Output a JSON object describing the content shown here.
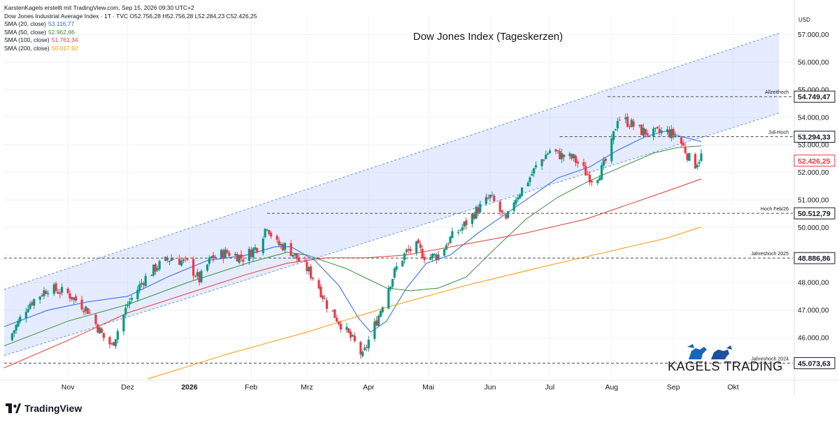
{
  "header": {
    "attribution": "KarstenKagels erstellt mit TradingView.com, Sep 15, 2026 09:30 UTC+2",
    "symbol": "Dow Jones Industrial Average Index · 1T · TVC",
    "ohlc": "O52.756,28 H52.756,28 L52.284,23 C52.426,25"
  },
  "legend": [
    {
      "label": "SMA (20, close)",
      "value": "53.116,77",
      "color": "#2962ff"
    },
    {
      "label": "SMA (50, close)",
      "value": "52.962,86",
      "color": "#388e3c"
    },
    {
      "label": "SMA (100, close)",
      "value": "51.761,34",
      "color": "#e53935"
    },
    {
      "label": "SMA (200, close)",
      "value": "50.017,92",
      "color": "#ff9800"
    }
  ],
  "branding": {
    "logo_text": "TradingView",
    "watermark": "KAGELS TRADING"
  },
  "chart_data": {
    "type": "candlestick",
    "title": "Dow Jones Index (Tageskerzen)",
    "currency": "USD",
    "ylim": [
      44500,
      57700
    ],
    "y_ticks": [
      "57.000,00",
      "56.000,00",
      "55.000,00",
      "54.000,00",
      "53.000,00",
      "52.000,00",
      "51.000,00",
      "50.000,00",
      "49.000,00",
      "48.000,00",
      "47.000,00",
      "46.000,00",
      "45.000,00"
    ],
    "y_tick_values": [
      57000,
      56000,
      55000,
      54000,
      53000,
      52000,
      51000,
      50000,
      49000,
      48000,
      47000,
      46000,
      45000
    ],
    "x_labels": [
      "Nov",
      "Dez",
      "2026",
      "Feb",
      "Mrz",
      "Apr",
      "Mai",
      "Jun",
      "Jul",
      "Aug",
      "Sep",
      "Okt"
    ],
    "x_label_days": [
      0,
      30,
      61,
      92,
      120,
      151,
      181,
      212,
      242,
      273,
      304,
      334
    ],
    "x_range_days": [
      -32,
      364
    ],
    "grid": true,
    "levels": [
      {
        "name": "Allzeithoch",
        "value": 54749.47,
        "label": "54.749,47",
        "from_day": 271
      },
      {
        "name": "Juli-Hoch",
        "value": 53294.33,
        "label": "53.294,33",
        "from_day": 247
      },
      {
        "name": "Hoch Feb/26",
        "value": 50512.79,
        "label": "50.512,79",
        "from_day": 100
      },
      {
        "name": "Jahreshoch 2025",
        "value": 48886.86,
        "label": "48.886,86",
        "from_day": -32
      },
      {
        "name": "Jahreshoch 2024",
        "value": 45073.63,
        "label": "45.073,63",
        "from_day": -32
      }
    ],
    "last_price": {
      "value": 52426.25,
      "label": "52.426,25"
    },
    "channel": {
      "upper": {
        "points": [
          [
            -32,
            47750
          ],
          [
            357,
            57050
          ]
        ]
      },
      "lower": {
        "points": [
          [
            -32,
            45350
          ],
          [
            357,
            54150
          ]
        ]
      }
    },
    "anchors": [
      [
        -30,
        45900
      ],
      [
        -20,
        47200
      ],
      [
        -10,
        47800
      ],
      [
        0,
        47600
      ],
      [
        10,
        47000
      ],
      [
        18,
        46000
      ],
      [
        22,
        45700
      ],
      [
        30,
        47200
      ],
      [
        38,
        48100
      ],
      [
        45,
        48600
      ],
      [
        52,
        48900
      ],
      [
        60,
        48700
      ],
      [
        66,
        48100
      ],
      [
        72,
        48900
      ],
      [
        80,
        49100
      ],
      [
        88,
        48900
      ],
      [
        95,
        49300
      ],
      [
        100,
        50100
      ],
      [
        104,
        49400
      ],
      [
        110,
        49300
      ],
      [
        116,
        48800
      ],
      [
        120,
        48500
      ],
      [
        125,
        48000
      ],
      [
        130,
        47200
      ],
      [
        135,
        46700
      ],
      [
        140,
        46200
      ],
      [
        145,
        45700
      ],
      [
        148,
        45300
      ],
      [
        152,
        46100
      ],
      [
        156,
        46800
      ],
      [
        160,
        47700
      ],
      [
        166,
        48700
      ],
      [
        170,
        49100
      ],
      [
        175,
        49300
      ],
      [
        180,
        48900
      ],
      [
        186,
        49000
      ],
      [
        192,
        49600
      ],
      [
        198,
        50000
      ],
      [
        205,
        50600
      ],
      [
        212,
        51100
      ],
      [
        216,
        50700
      ],
      [
        220,
        50200
      ],
      [
        224,
        51000
      ],
      [
        230,
        51600
      ],
      [
        236,
        52300
      ],
      [
        242,
        52800
      ],
      [
        248,
        52600
      ],
      [
        254,
        52500
      ],
      [
        260,
        52000
      ],
      [
        264,
        51700
      ],
      [
        268,
        52100
      ],
      [
        272,
        52700
      ],
      [
        276,
        54000
      ],
      [
        282,
        53800
      ],
      [
        288,
        53500
      ],
      [
        294,
        53400
      ],
      [
        300,
        53500
      ],
      [
        306,
        53300
      ],
      [
        310,
        52800
      ],
      [
        314,
        52200
      ],
      [
        318,
        52600
      ]
    ],
    "sma": [
      {
        "name": "SMA (20, close)",
        "color": "#2962ff",
        "points": [
          [
            -32,
            46400
          ],
          [
            -10,
            47000
          ],
          [
            10,
            47300
          ],
          [
            30,
            47500
          ],
          [
            50,
            48200
          ],
          [
            70,
            48800
          ],
          [
            90,
            49000
          ],
          [
            104,
            49300
          ],
          [
            112,
            49300
          ],
          [
            124,
            48800
          ],
          [
            136,
            47900
          ],
          [
            146,
            46700
          ],
          [
            152,
            46200
          ],
          [
            160,
            46600
          ],
          [
            170,
            47800
          ],
          [
            180,
            48700
          ],
          [
            192,
            49000
          ],
          [
            206,
            49800
          ],
          [
            218,
            50400
          ],
          [
            232,
            51100
          ],
          [
            246,
            51800
          ],
          [
            262,
            52200
          ],
          [
            276,
            52800
          ],
          [
            290,
            53300
          ],
          [
            300,
            53500
          ],
          [
            308,
            53300
          ],
          [
            318,
            53117
          ]
        ]
      },
      {
        "name": "SMA (50, close)",
        "color": "#388e3c",
        "points": [
          [
            -32,
            45700
          ],
          [
            0,
            46600
          ],
          [
            30,
            47200
          ],
          [
            60,
            48000
          ],
          [
            90,
            48700
          ],
          [
            110,
            49100
          ],
          [
            120,
            49000
          ],
          [
            140,
            48500
          ],
          [
            160,
            47800
          ],
          [
            172,
            47700
          ],
          [
            186,
            47800
          ],
          [
            200,
            48200
          ],
          [
            214,
            49200
          ],
          [
            230,
            50300
          ],
          [
            246,
            51100
          ],
          [
            262,
            51700
          ],
          [
            278,
            52200
          ],
          [
            294,
            52700
          ],
          [
            306,
            52900
          ],
          [
            318,
            52963
          ]
        ]
      },
      {
        "name": "SMA (100, close)",
        "color": "#e53935",
        "points": [
          [
            -32,
            44900
          ],
          [
            0,
            45900
          ],
          [
            30,
            46900
          ],
          [
            60,
            47600
          ],
          [
            90,
            48300
          ],
          [
            110,
            48700
          ],
          [
            130,
            48900
          ],
          [
            150,
            48900
          ],
          [
            170,
            49000
          ],
          [
            200,
            49400
          ],
          [
            230,
            49800
          ],
          [
            260,
            50300
          ],
          [
            280,
            50800
          ],
          [
            300,
            51300
          ],
          [
            318,
            51761
          ]
        ]
      },
      {
        "name": "SMA (200, close)",
        "color": "#ff9800",
        "points": [
          [
            40,
            44500
          ],
          [
            80,
            45400
          ],
          [
            120,
            46200
          ],
          [
            160,
            47100
          ],
          [
            200,
            47900
          ],
          [
            240,
            48600
          ],
          [
            270,
            49100
          ],
          [
            300,
            49600
          ],
          [
            318,
            50018
          ]
        ]
      }
    ]
  }
}
